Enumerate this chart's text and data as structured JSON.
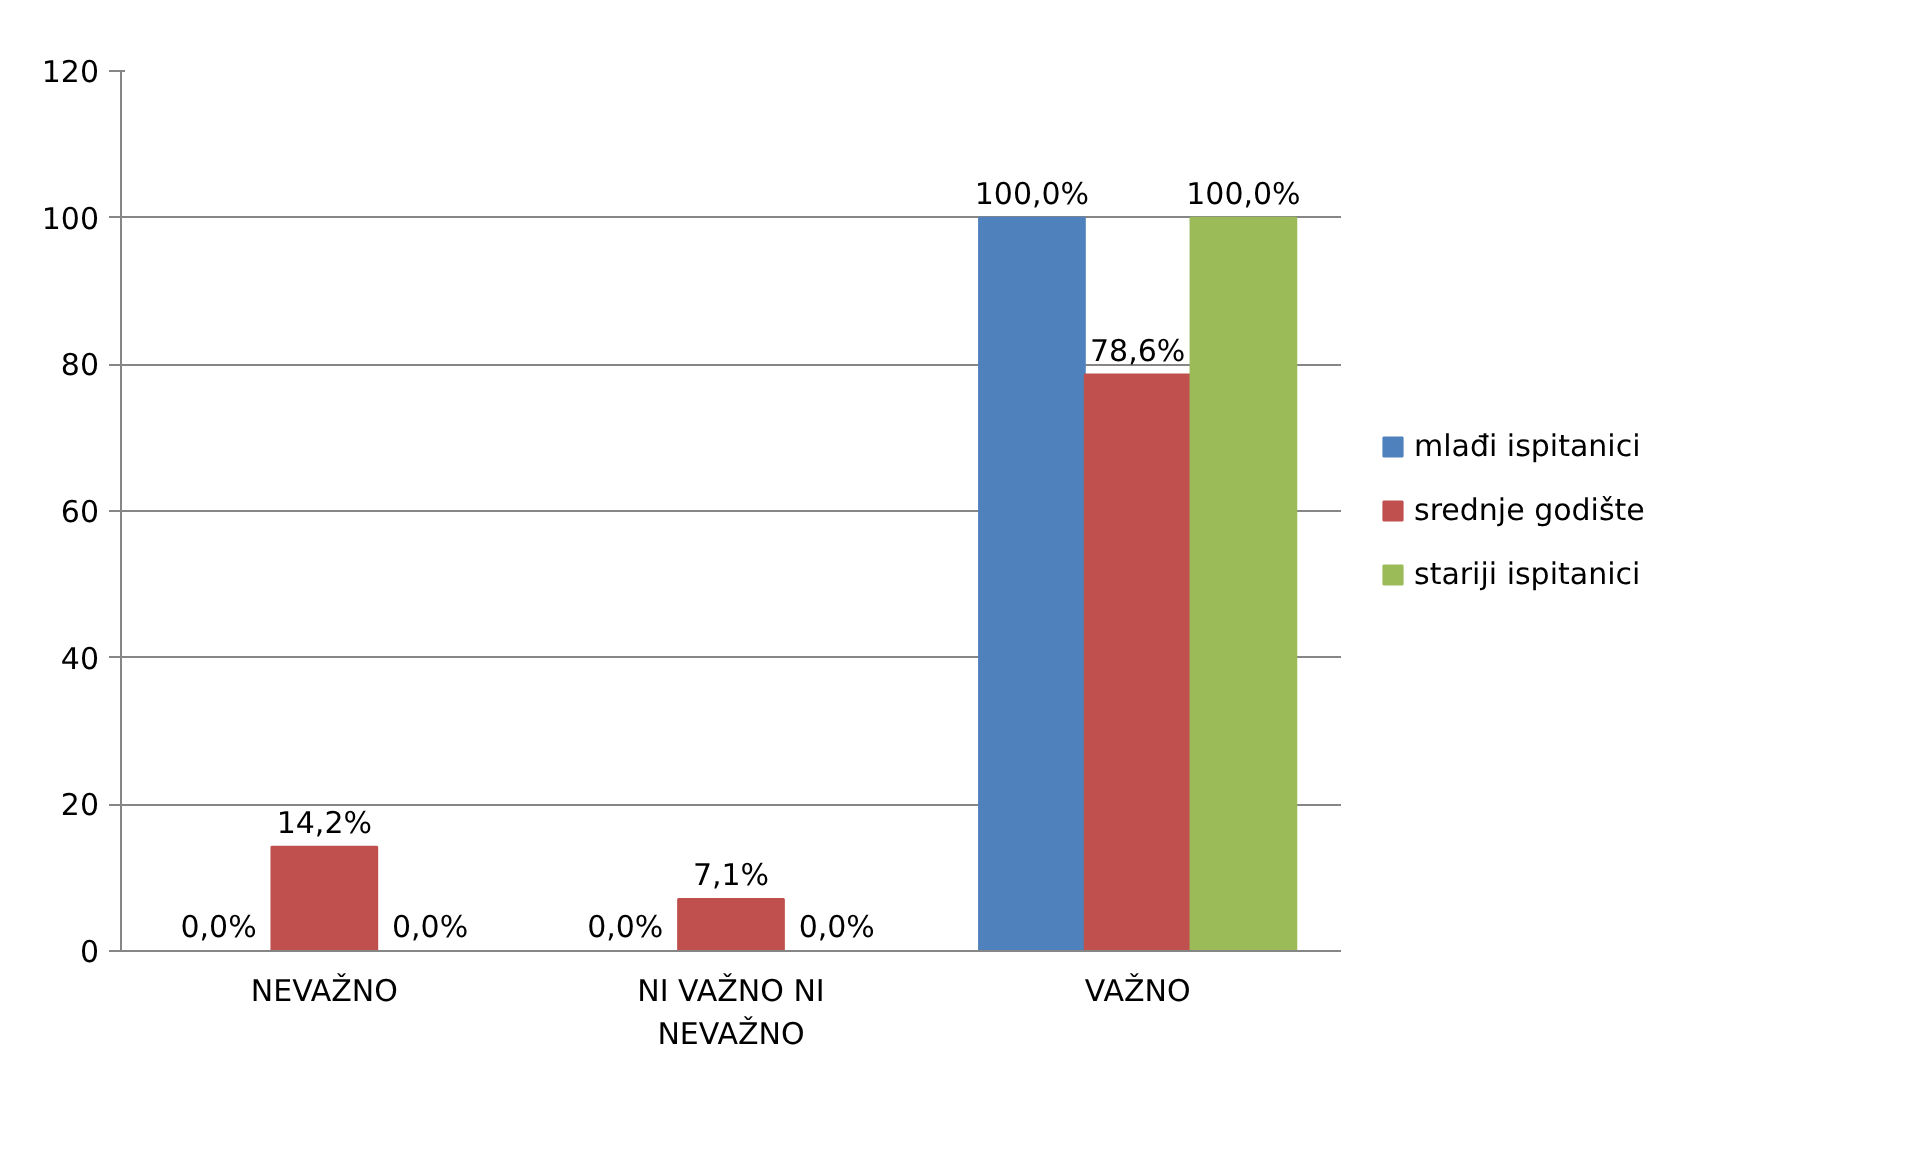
{
  "chart_data": {
    "type": "bar",
    "categories": [
      "NEVAŽNO",
      "NI VAŽNO NI NEVAŽNO",
      "VAŽNO"
    ],
    "series": [
      {
        "name": "mlađi ispitanici",
        "color": "#4f81bd",
        "values": [
          0,
          0,
          100
        ],
        "value_labels": [
          "0,0%",
          "0,0%",
          "100,0%"
        ]
      },
      {
        "name": "srednje godište",
        "color": "#c0504d",
        "values": [
          14.2,
          7.1,
          78.6
        ],
        "value_labels": [
          "14,2%",
          "7,1%",
          "78,6%"
        ]
      },
      {
        "name": "stariji ispitanici",
        "color": "#9bbb59",
        "values": [
          0,
          0,
          100
        ],
        "value_labels": [
          "0,0%",
          "0,0%",
          "100,0%"
        ]
      }
    ],
    "ylim": [
      0,
      120
    ],
    "yticks": [
      0,
      20,
      40,
      60,
      80,
      100,
      120
    ],
    "grid": "y",
    "legend": "right"
  }
}
